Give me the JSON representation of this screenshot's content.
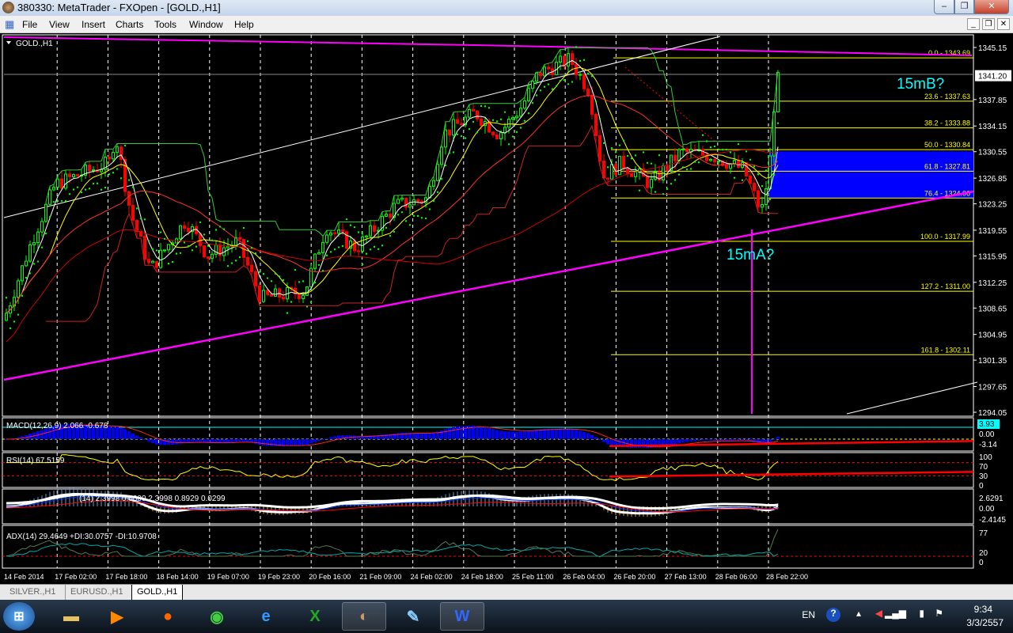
{
  "window": {
    "title": "380330: MetaTrader - FXOpen - [GOLD.,H1]"
  },
  "menu": [
    "File",
    "View",
    "Insert",
    "Charts",
    "Tools",
    "Window",
    "Help"
  ],
  "chart": {
    "symbol_label": "GOLD.,H1",
    "current_price": "1341.20",
    "price_axis": [
      "1345.15",
      "1341.20",
      "1337.85",
      "1334.15",
      "1330.55",
      "1326.85",
      "1323.25",
      "1319.55",
      "1315.95",
      "1312.25",
      "1308.65",
      "1304.95",
      "1301.35",
      "1297.65",
      "1294.05"
    ],
    "time_axis": [
      "14 Feb 2014",
      "17 Feb 02:00",
      "17 Feb 18:00",
      "18 Feb 14:00",
      "19 Feb 07:00",
      "19 Feb 23:00",
      "20 Feb 16:00",
      "21 Feb 09:00",
      "24 Feb 02:00",
      "24 Feb 18:00",
      "25 Feb 11:00",
      "26 Feb 04:00",
      "26 Feb 20:00",
      "27 Feb 13:00",
      "28 Feb 06:00",
      "28 Feb 22:00"
    ],
    "fibonacci": [
      {
        "label": "0.0 - 1343.69",
        "price": 1343.69
      },
      {
        "label": "23.6 - 1337.63",
        "price": 1337.63
      },
      {
        "label": "38.2 - 1333.88",
        "price": 1333.88
      },
      {
        "label": "50.0 - 1330.84",
        "price": 1330.84
      },
      {
        "label": "61.8 - 1327.81",
        "price": 1327.81
      },
      {
        "label": "76.4 - 1324.06",
        "price": 1324.06
      },
      {
        "label": "100.0 - 1317.99",
        "price": 1317.99
      },
      {
        "label": "127.2 - 1311.00",
        "price": 1311.0
      },
      {
        "label": "161.8 - 1302.11",
        "price": 1302.11
      }
    ],
    "annotations": {
      "b": "15mB?",
      "a": "15mA?"
    },
    "zone": {
      "top": 1330.6,
      "bottom": 1324.1,
      "color": "#0000ff"
    },
    "colors": {
      "bull": "#00ff00",
      "bear": "#ff0000",
      "fib": "#ffff00",
      "trend": "#ff00ff",
      "annotation": "#00ffff"
    }
  },
  "chart_data": {
    "type": "candlestick",
    "ylim": [
      1294.05,
      1345.15
    ],
    "x_ticks": [
      "14 Feb 2014",
      "17 Feb 02:00",
      "17 Feb 18:00",
      "18 Feb 14:00",
      "19 Feb 07:00",
      "19 Feb 23:00",
      "20 Feb 16:00",
      "21 Feb 09:00",
      "24 Feb 02:00",
      "24 Feb 18:00",
      "25 Feb 11:00",
      "26 Feb 04:00",
      "26 Feb 20:00",
      "27 Feb 13:00",
      "28 Feb 06:00",
      "28 Feb 22:00"
    ],
    "approx_close_at_ticks": [
      1307,
      1327,
      1328,
      1316,
      1316,
      1311,
      1312,
      1318,
      1323,
      1334,
      1336,
      1340,
      1329,
      1327,
      1329,
      1325
    ],
    "last_close": 1341.2
  },
  "indicators": {
    "macd": {
      "label": "MACD(12,26,9) 2.066 -0.678",
      "axis": [
        "3.93",
        "0.00",
        "-3.14"
      ]
    },
    "rsi": {
      "label": "RSI(14) 67.5159",
      "axis": [
        "100",
        "70",
        "30",
        "0"
      ]
    },
    "third": {
      "label": "(14) 2.3998 0.0000 2.3998 0.8929 0.0299",
      "axis": [
        "2.6291",
        "0.00",
        "-2.4145"
      ]
    },
    "adx": {
      "label": "ADX(14) 29.4649 +DI:30.0757 -DI:10.9708",
      "axis": [
        "77",
        "20",
        "0"
      ]
    }
  },
  "tabs": [
    {
      "label": "SILVER.,H1"
    },
    {
      "label": "EURUSD.,H1"
    },
    {
      "label": "GOLD.,H1",
      "active": true
    }
  ],
  "taskbar": {
    "lang": "EN",
    "time": "9:34",
    "date": "3/3/2557"
  }
}
